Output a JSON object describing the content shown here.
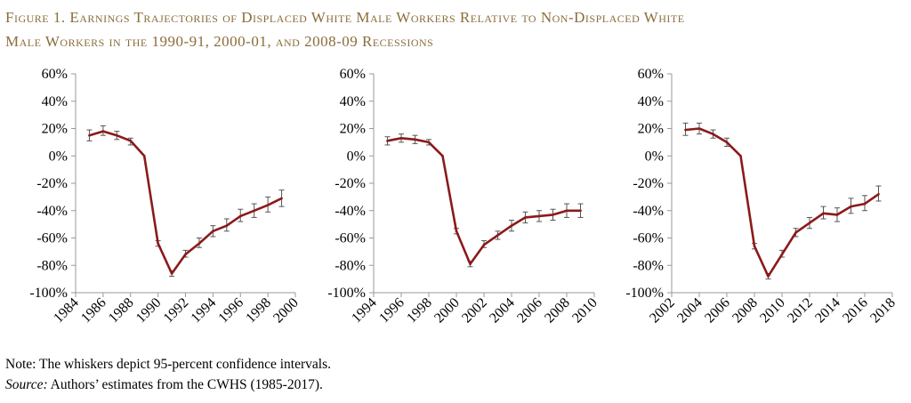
{
  "figure_title_line1": "Figure 1. Earnings Trajectories of Displaced White Male Workers Relative to Non-Displaced White",
  "figure_title_line2": "Male Workers in the 1990-91, 2000-01, and 2008-09 Recessions",
  "note": "Note: The whiskers depict 95-percent confidence intervals.",
  "source_label": "Source:",
  "source_text": " Authors’ estimates from the CWHS (1985-2017).",
  "colors": {
    "line": "#8b1a1a",
    "whisker": "#555555",
    "axis": "#999999",
    "title": "#8a6d3b"
  },
  "chart_data": [
    {
      "type": "line",
      "title": "",
      "xlabel": "",
      "ylabel": "",
      "xlim": [
        1984,
        2000
      ],
      "ylim": [
        -100,
        60
      ],
      "yticks": [
        60,
        40,
        20,
        0,
        -20,
        -40,
        -60,
        -80,
        -100
      ],
      "ytick_labels": [
        "60%",
        "40%",
        "20%",
        "0%",
        "-20%",
        "-40%",
        "-60%",
        "-80%",
        "-100%"
      ],
      "xticks": [
        "1984",
        "1986",
        "1988",
        "1990",
        "1992",
        "1994",
        "1996",
        "1998",
        "2000"
      ],
      "grid": false,
      "series": [
        {
          "x": [
            1985,
            1986,
            1987,
            1988,
            1989,
            1990,
            1991,
            1992,
            1993,
            1994,
            1995,
            1996,
            1997,
            1998,
            1999
          ],
          "y": [
            15,
            18,
            15,
            11,
            0,
            -64,
            -86,
            -72,
            -64,
            -55,
            -51,
            -44,
            -40,
            -36,
            -31
          ],
          "ci_low": [
            11,
            15,
            12,
            8,
            0,
            -66,
            -88,
            -74,
            -67,
            -59,
            -55,
            -48,
            -45,
            -41,
            -37
          ],
          "ci_high": [
            19,
            22,
            18,
            13,
            0,
            -62,
            -84,
            -69,
            -60,
            -51,
            -46,
            -39,
            -35,
            -30,
            -25
          ]
        }
      ]
    },
    {
      "type": "line",
      "title": "",
      "xlabel": "",
      "ylabel": "",
      "xlim": [
        1994,
        2010
      ],
      "ylim": [
        -100,
        60
      ],
      "yticks": [
        60,
        40,
        20,
        0,
        -20,
        -40,
        -60,
        -80,
        -100
      ],
      "ytick_labels": [
        "60%",
        "40%",
        "20%",
        "0%",
        "-20%",
        "-40%",
        "-60%",
        "-80%",
        "-100%"
      ],
      "xticks": [
        "1994",
        "1996",
        "1998",
        "2000",
        "2002",
        "2004",
        "2006",
        "2008",
        "2010"
      ],
      "grid": false,
      "series": [
        {
          "x": [
            1995,
            1996,
            1997,
            1998,
            1999,
            2000,
            2001,
            2002,
            2003,
            2004,
            2005,
            2006,
            2007,
            2008,
            2009
          ],
          "y": [
            11,
            13,
            12,
            10,
            0,
            -55,
            -79,
            -65,
            -58,
            -51,
            -45,
            -44,
            -43,
            -40,
            -40
          ],
          "ci_low": [
            8,
            10,
            9,
            8,
            0,
            -57,
            -81,
            -67,
            -61,
            -55,
            -49,
            -48,
            -47,
            -45,
            -45
          ],
          "ci_high": [
            14,
            16,
            15,
            12,
            0,
            -53,
            -77,
            -62,
            -55,
            -47,
            -41,
            -40,
            -39,
            -35,
            -35
          ]
        }
      ]
    },
    {
      "type": "line",
      "title": "",
      "xlabel": "",
      "ylabel": "",
      "xlim": [
        2002,
        2018
      ],
      "ylim": [
        -100,
        60
      ],
      "yticks": [
        60,
        40,
        20,
        0,
        -20,
        -40,
        -60,
        -80,
        -100
      ],
      "ytick_labels": [
        "60%",
        "40%",
        "20%",
        "0%",
        "-20%",
        "-40%",
        "-60%",
        "-80%",
        "-100%"
      ],
      "xticks": [
        "2002",
        "2004",
        "2006",
        "2008",
        "2010",
        "2012",
        "2014",
        "2016",
        "2018"
      ],
      "grid": false,
      "series": [
        {
          "x": [
            2003,
            2004,
            2005,
            2006,
            2007,
            2008,
            2009,
            2010,
            2011,
            2012,
            2013,
            2014,
            2015,
            2016,
            2017
          ],
          "y": [
            19,
            20,
            16,
            10,
            0,
            -66,
            -88,
            -72,
            -56,
            -49,
            -42,
            -43,
            -37,
            -35,
            -28
          ],
          "ci_low": [
            15,
            16,
            13,
            7,
            0,
            -68,
            -90,
            -74,
            -59,
            -53,
            -46,
            -48,
            -42,
            -40,
            -33
          ],
          "ci_high": [
            24,
            24,
            19,
            13,
            0,
            -64,
            -86,
            -69,
            -53,
            -45,
            -37,
            -38,
            -31,
            -29,
            -22
          ]
        }
      ]
    }
  ]
}
